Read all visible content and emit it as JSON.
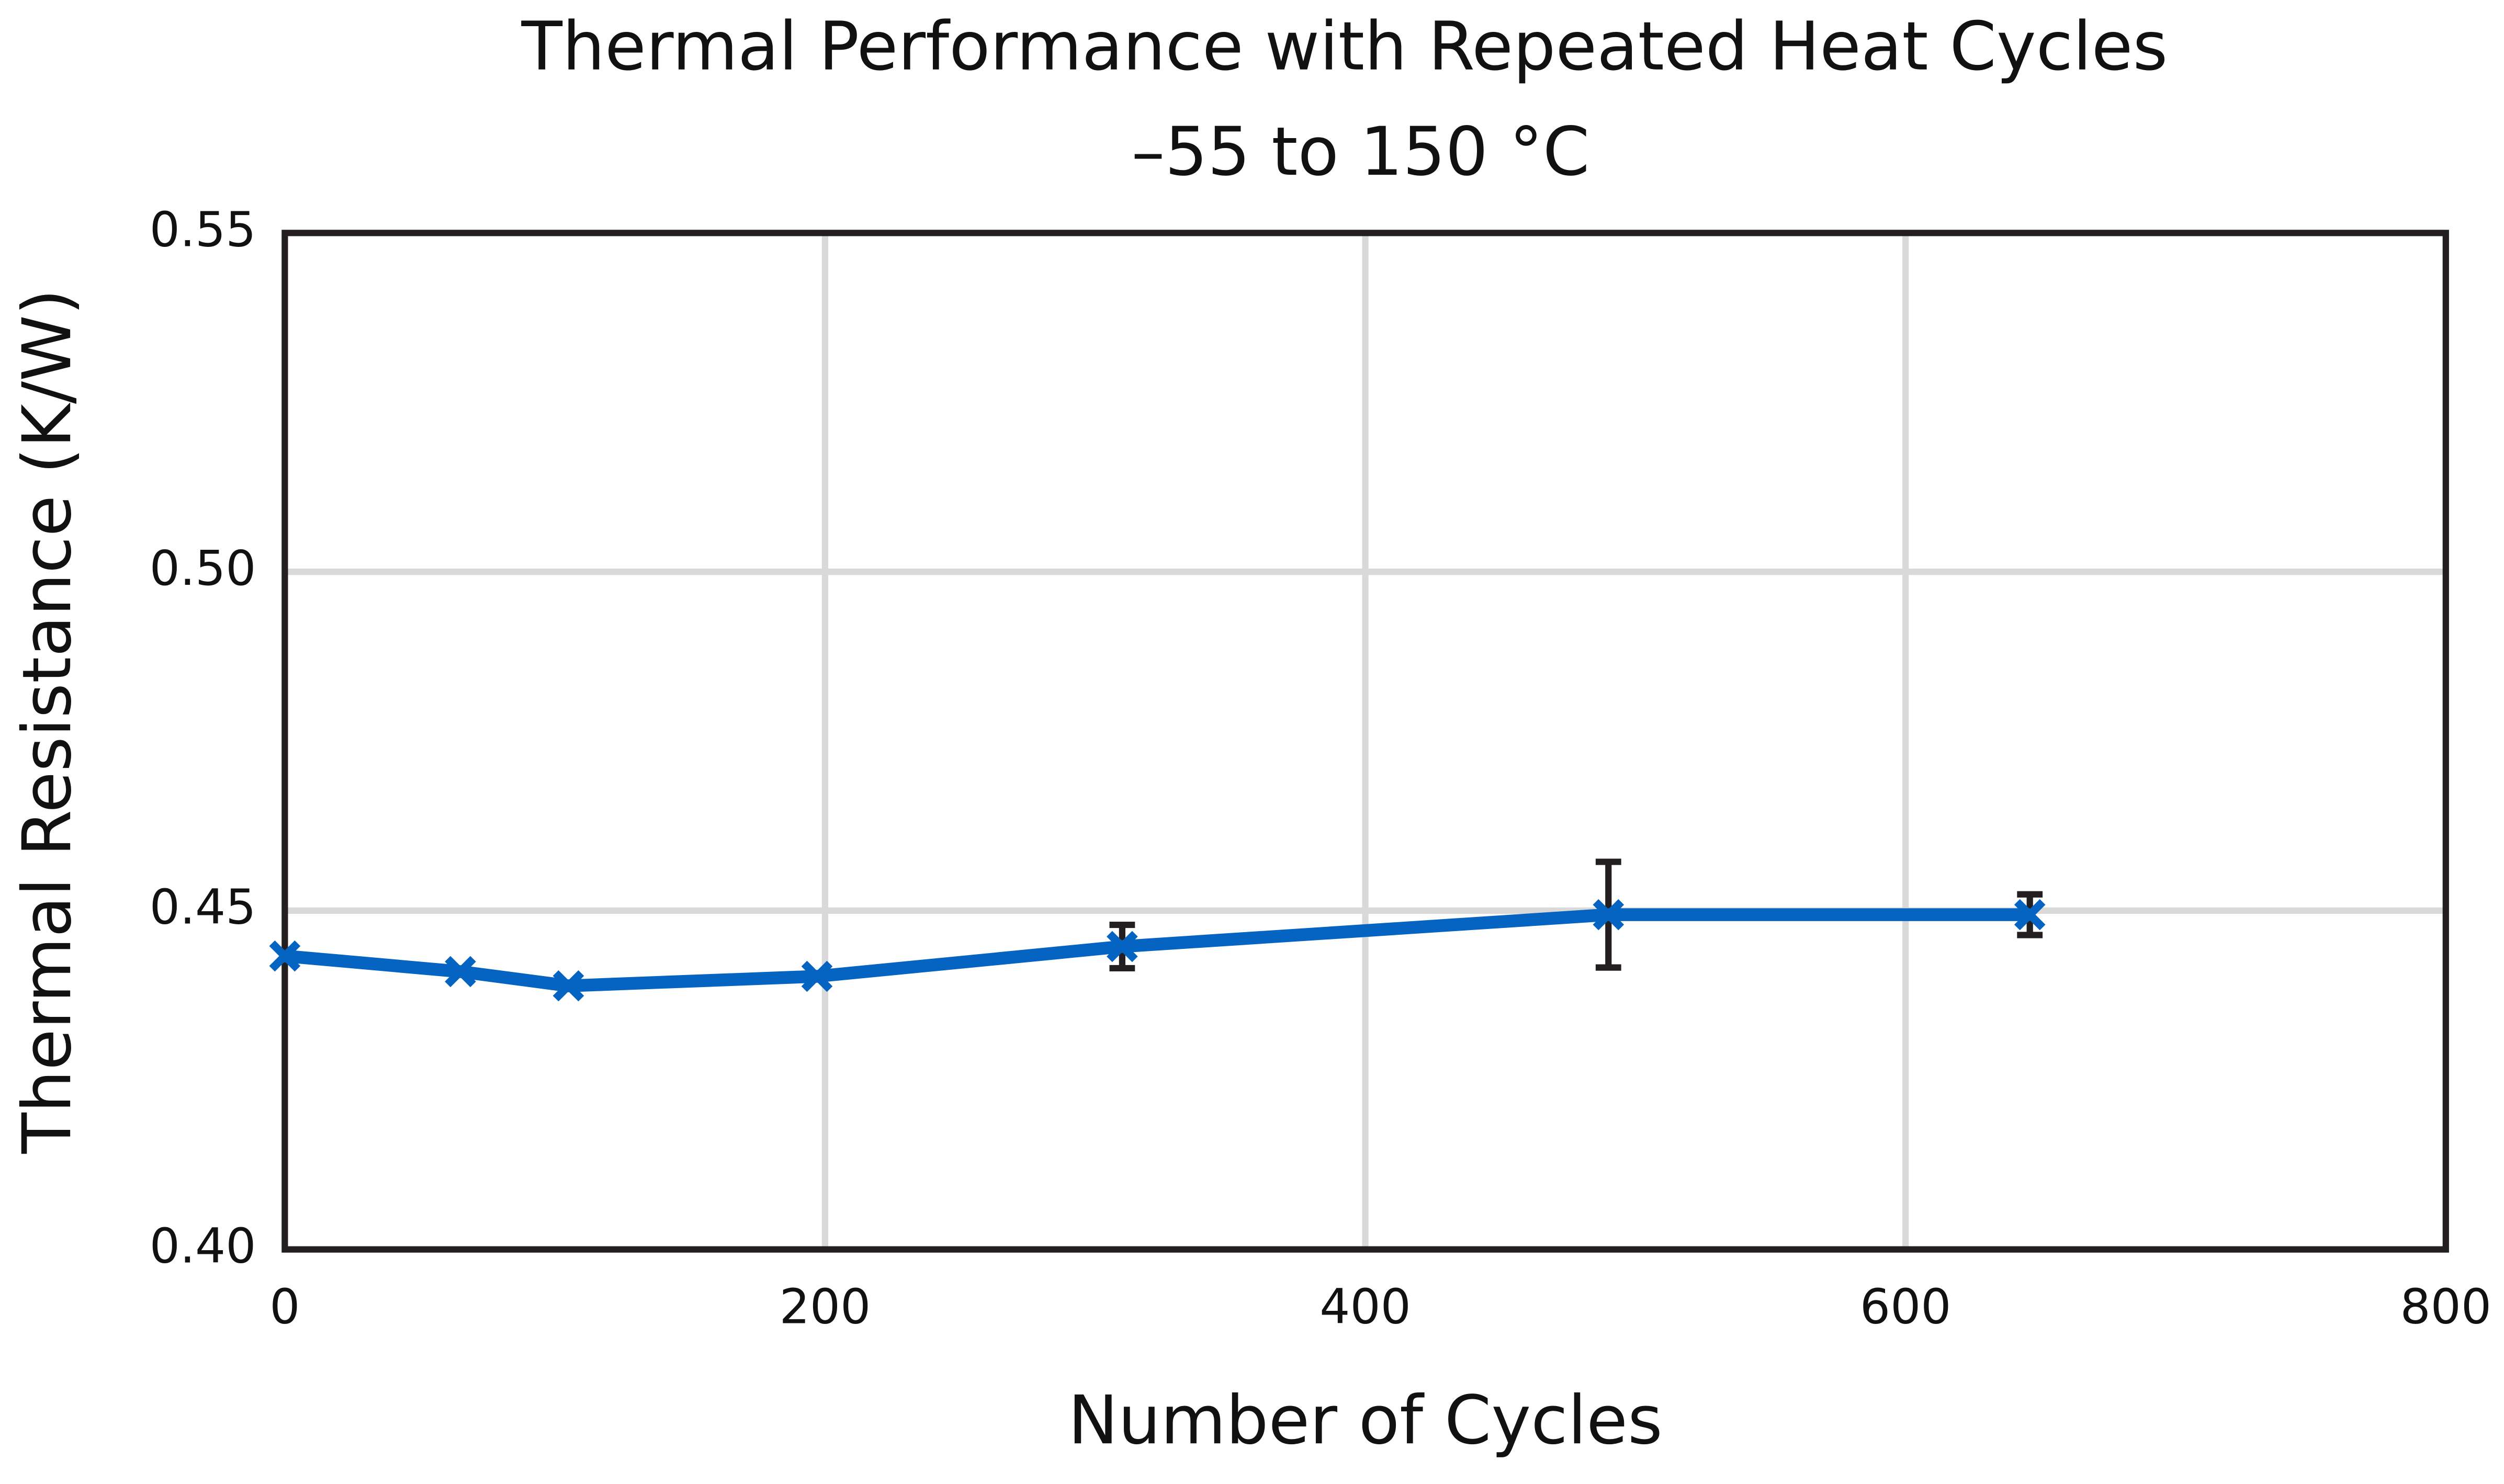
{
  "chart_data": {
    "type": "line",
    "title": "Thermal Performance with Repeated Heat Cycles",
    "subtitle": "–55 to 150 °C",
    "x_label": "Number of Cycles",
    "y_label": "Thermal Resistance (K/W)",
    "x": [
      0,
      65,
      105,
      197,
      310,
      490,
      646
    ],
    "series": [
      {
        "color": "#0563c1",
        "values": [
          0.4433,
          0.441,
          0.4389,
          0.4403,
          0.4447,
          0.4494,
          0.4494
        ],
        "errors": [
          null,
          null,
          null,
          null,
          0.0032,
          0.0078,
          0.003
        ]
      }
    ],
    "xlim": [
      0,
      800
    ],
    "xticks": [
      0,
      200,
      400,
      600,
      800
    ],
    "ylim": [
      0.4,
      0.55
    ],
    "yticks": [
      {
        "value": 0.4,
        "label": "0.40"
      },
      0.45,
      {
        "value": 0.5,
        "label": "0.50"
      },
      0.55
    ],
    "grid": true
  }
}
